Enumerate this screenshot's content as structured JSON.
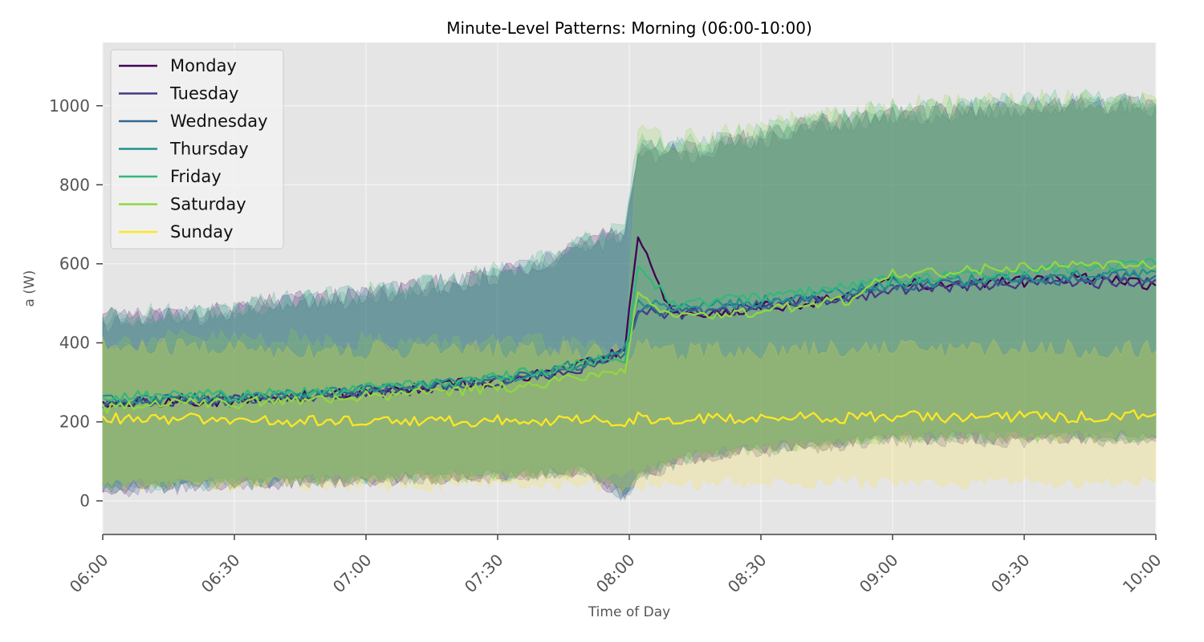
{
  "chart_data": {
    "type": "line",
    "title": "Minute-Level Patterns: Morning (06:00-10:00)",
    "xlabel": "Time of Day",
    "ylabel": "a (W)",
    "xlim": [
      "06:00",
      "10:00"
    ],
    "ylim": [
      -85,
      1160
    ],
    "x_ticks": [
      "06:00",
      "06:30",
      "07:00",
      "07:30",
      "08:00",
      "08:30",
      "09:00",
      "09:30",
      "10:00"
    ],
    "y_ticks": [
      0,
      200,
      400,
      600,
      800,
      1000
    ],
    "grid": true,
    "legend_position": "top-left",
    "band_description_values_in_W": "shaded band around each series",
    "x": [
      "06:00",
      "06:10",
      "06:20",
      "06:30",
      "06:40",
      "06:50",
      "07:00",
      "07:10",
      "07:20",
      "07:30",
      "07:40",
      "07:50",
      "07:59",
      "08:02",
      "08:10",
      "08:20",
      "08:30",
      "08:40",
      "08:50",
      "09:00",
      "09:10",
      "09:20",
      "09:30",
      "09:40",
      "09:50",
      "10:00"
    ],
    "series": [
      {
        "name": "Monday",
        "color": "#440154",
        "values": [
          245,
          250,
          255,
          250,
          262,
          268,
          275,
          285,
          295,
          300,
          320,
          345,
          385,
          660,
          475,
          470,
          490,
          500,
          515,
          560,
          545,
          550,
          555,
          565,
          560,
          545
        ],
        "upper": [
          460,
          470,
          470,
          480,
          500,
          510,
          520,
          535,
          550,
          575,
          610,
          650,
          680,
          900,
          880,
          900,
          920,
          950,
          960,
          975,
          985,
          990,
          995,
          1000,
          1000,
          1000
        ],
        "lower": [
          30,
          35,
          40,
          45,
          45,
          50,
          55,
          55,
          60,
          65,
          70,
          75,
          10,
          60,
          100,
          120,
          130,
          140,
          150,
          160,
          160,
          160,
          155,
          160,
          160,
          160
        ]
      },
      {
        "name": "Tuesday",
        "color": "#443983",
        "values": [
          240,
          250,
          250,
          255,
          260,
          265,
          270,
          280,
          290,
          300,
          315,
          340,
          375,
          480,
          470,
          480,
          490,
          505,
          510,
          535,
          540,
          545,
          550,
          555,
          550,
          560
        ],
        "upper": [
          450,
          465,
          470,
          475,
          495,
          505,
          515,
          530,
          545,
          570,
          600,
          640,
          670,
          880,
          870,
          895,
          915,
          940,
          955,
          970,
          980,
          985,
          990,
          995,
          995,
          995
        ],
        "lower": [
          25,
          30,
          35,
          40,
          45,
          50,
          50,
          55,
          60,
          60,
          65,
          70,
          10,
          55,
          95,
          115,
          125,
          135,
          145,
          150,
          155,
          150,
          150,
          155,
          150,
          150
        ]
      },
      {
        "name": "Wednesday",
        "color": "#31688e",
        "values": [
          250,
          255,
          260,
          255,
          265,
          270,
          278,
          288,
          296,
          305,
          318,
          345,
          370,
          485,
          480,
          485,
          495,
          510,
          520,
          545,
          550,
          555,
          560,
          560,
          565,
          570
        ],
        "upper": [
          455,
          465,
          475,
          480,
          500,
          510,
          520,
          535,
          550,
          575,
          605,
          645,
          675,
          890,
          880,
          900,
          920,
          945,
          960,
          975,
          985,
          990,
          995,
          1000,
          1000,
          1000
        ],
        "lower": [
          30,
          35,
          40,
          45,
          50,
          50,
          55,
          60,
          60,
          65,
          70,
          75,
          15,
          60,
          100,
          120,
          130,
          140,
          150,
          160,
          160,
          160,
          160,
          160,
          160,
          160
        ]
      },
      {
        "name": "Thursday",
        "color": "#21918c",
        "values": [
          255,
          260,
          265,
          262,
          268,
          275,
          280,
          290,
          298,
          310,
          325,
          350,
          380,
          500,
          490,
          495,
          505,
          520,
          530,
          550,
          555,
          560,
          565,
          570,
          575,
          580
        ],
        "upper": [
          460,
          470,
          475,
          485,
          505,
          515,
          525,
          540,
          555,
          580,
          610,
          650,
          680,
          900,
          890,
          905,
          925,
          950,
          965,
          980,
          990,
          995,
          1000,
          1005,
          1005,
          1005
        ],
        "lower": [
          30,
          35,
          40,
          45,
          50,
          55,
          55,
          60,
          65,
          65,
          70,
          75,
          15,
          60,
          100,
          120,
          130,
          140,
          150,
          160,
          165,
          160,
          160,
          165,
          160,
          160
        ]
      },
      {
        "name": "Friday",
        "color": "#35b779",
        "values": [
          260,
          265,
          270,
          265,
          272,
          278,
          285,
          295,
          300,
          312,
          330,
          352,
          360,
          590,
          500,
          505,
          515,
          530,
          540,
          560,
          570,
          575,
          580,
          590,
          595,
          600
        ],
        "upper": [
          465,
          475,
          480,
          490,
          510,
          520,
          530,
          545,
          560,
          585,
          615,
          655,
          690,
          920,
          900,
          915,
          935,
          960,
          975,
          990,
          1000,
          1005,
          1010,
          1015,
          1015,
          1015
        ],
        "lower": [
          35,
          40,
          45,
          50,
          50,
          55,
          60,
          60,
          65,
          70,
          75,
          80,
          20,
          65,
          105,
          125,
          135,
          145,
          155,
          165,
          165,
          165,
          165,
          165,
          165,
          165
        ]
      },
      {
        "name": "Saturday",
        "color": "#90d743",
        "values": [
          235,
          245,
          250,
          245,
          255,
          260,
          265,
          270,
          278,
          285,
          295,
          315,
          335,
          540,
          460,
          470,
          480,
          495,
          510,
          575,
          580,
          585,
          590,
          600,
          600,
          595
        ],
        "upper": [
          400,
          405,
          410,
          410,
          410,
          405,
          405,
          400,
          400,
          395,
          395,
          390,
          380,
          930,
          910,
          925,
          945,
          965,
          980,
          995,
          1005,
          1010,
          1015,
          1020,
          1020,
          1020
        ],
        "lower": [
          40,
          45,
          45,
          50,
          50,
          55,
          55,
          60,
          60,
          65,
          65,
          70,
          60,
          70,
          110,
          125,
          135,
          145,
          150,
          160,
          165,
          165,
          165,
          165,
          165,
          165
        ]
      },
      {
        "name": "Sunday",
        "color": "#fde725",
        "values": [
          210,
          205,
          208,
          205,
          200,
          202,
          200,
          205,
          200,
          205,
          200,
          205,
          200,
          210,
          205,
          210,
          208,
          212,
          210,
          215,
          212,
          210,
          215,
          212,
          215,
          220
        ],
        "upper": [
          390,
          385,
          390,
          385,
          380,
          385,
          380,
          385,
          380,
          385,
          380,
          385,
          375,
          385,
          380,
          385,
          380,
          390,
          385,
          390,
          385,
          385,
          390,
          385,
          385,
          380
        ],
        "lower": [
          40,
          40,
          45,
          40,
          45,
          40,
          45,
          40,
          45,
          40,
          45,
          40,
          30,
          40,
          45,
          45,
          50,
          45,
          50,
          45,
          50,
          45,
          50,
          45,
          50,
          50
        ]
      }
    ]
  }
}
